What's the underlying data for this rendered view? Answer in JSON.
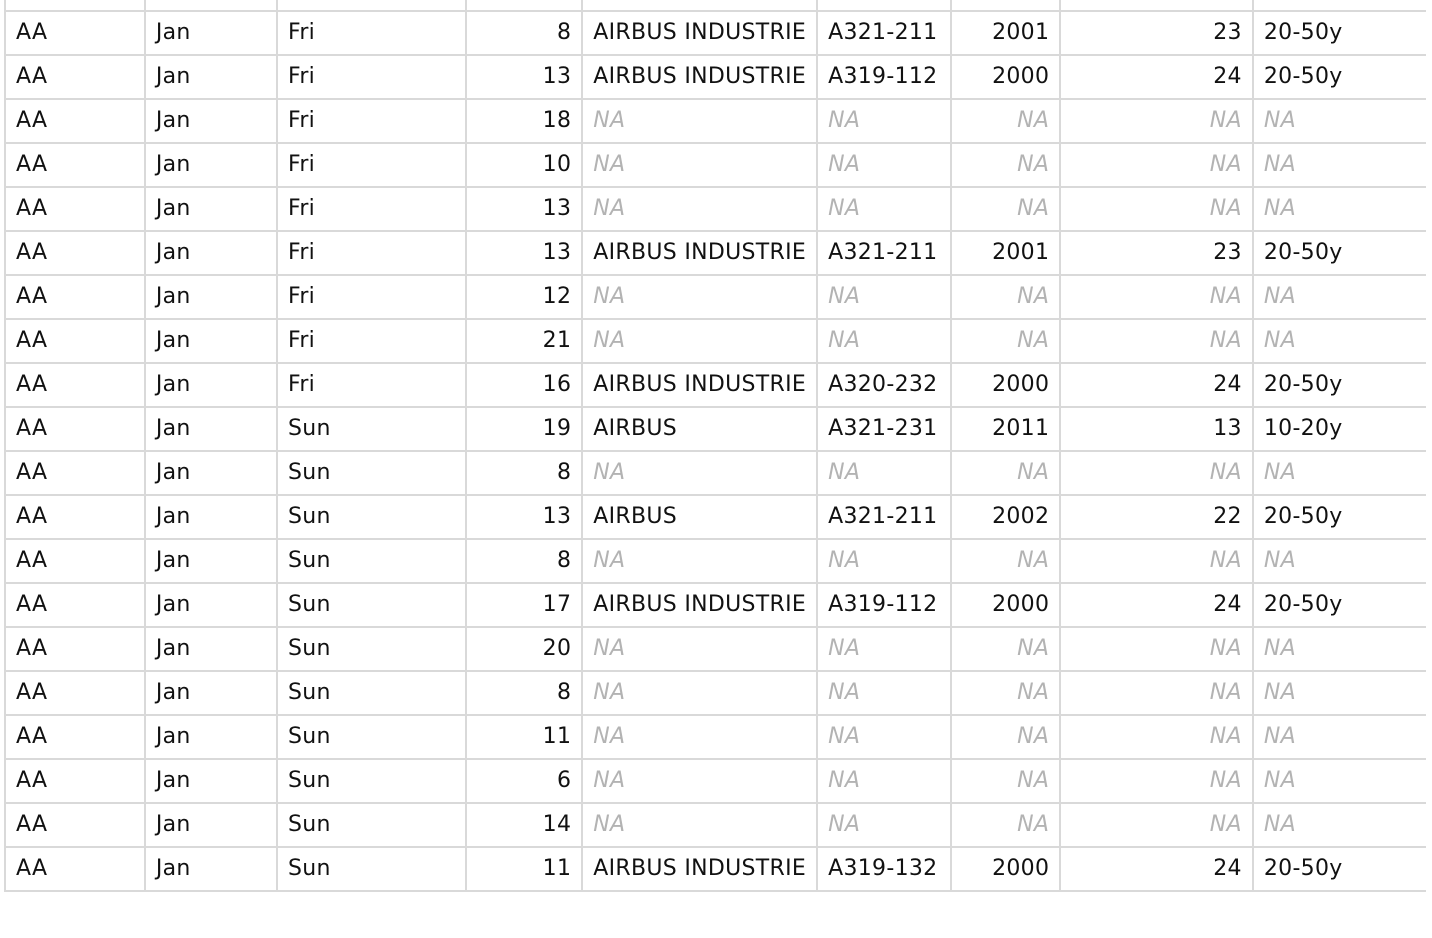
{
  "na_text": "NA",
  "rows": [
    [
      "AA",
      "Jan",
      "Fri",
      "8",
      "AIRBUS INDUSTRIE",
      "A321-211",
      "2001",
      "23",
      "20-50y"
    ],
    [
      "AA",
      "Jan",
      "Fri",
      "13",
      "AIRBUS INDUSTRIE",
      "A319-112",
      "2000",
      "24",
      "20-50y"
    ],
    [
      "AA",
      "Jan",
      "Fri",
      "18",
      "NA",
      "NA",
      "NA",
      "NA",
      "NA"
    ],
    [
      "AA",
      "Jan",
      "Fri",
      "10",
      "NA",
      "NA",
      "NA",
      "NA",
      "NA"
    ],
    [
      "AA",
      "Jan",
      "Fri",
      "13",
      "NA",
      "NA",
      "NA",
      "NA",
      "NA"
    ],
    [
      "AA",
      "Jan",
      "Fri",
      "13",
      "AIRBUS INDUSTRIE",
      "A321-211",
      "2001",
      "23",
      "20-50y"
    ],
    [
      "AA",
      "Jan",
      "Fri",
      "12",
      "NA",
      "NA",
      "NA",
      "NA",
      "NA"
    ],
    [
      "AA",
      "Jan",
      "Fri",
      "21",
      "NA",
      "NA",
      "NA",
      "NA",
      "NA"
    ],
    [
      "AA",
      "Jan",
      "Fri",
      "16",
      "AIRBUS INDUSTRIE",
      "A320-232",
      "2000",
      "24",
      "20-50y"
    ],
    [
      "AA",
      "Jan",
      "Sun",
      "19",
      "AIRBUS",
      "A321-231",
      "2011",
      "13",
      "10-20y"
    ],
    [
      "AA",
      "Jan",
      "Sun",
      "8",
      "NA",
      "NA",
      "NA",
      "NA",
      "NA"
    ],
    [
      "AA",
      "Jan",
      "Sun",
      "13",
      "AIRBUS",
      "A321-211",
      "2002",
      "22",
      "20-50y"
    ],
    [
      "AA",
      "Jan",
      "Sun",
      "8",
      "NA",
      "NA",
      "NA",
      "NA",
      "NA"
    ],
    [
      "AA",
      "Jan",
      "Sun",
      "17",
      "AIRBUS INDUSTRIE",
      "A319-112",
      "2000",
      "24",
      "20-50y"
    ],
    [
      "AA",
      "Jan",
      "Sun",
      "20",
      "NA",
      "NA",
      "NA",
      "NA",
      "NA"
    ],
    [
      "AA",
      "Jan",
      "Sun",
      "8",
      "NA",
      "NA",
      "NA",
      "NA",
      "NA"
    ],
    [
      "AA",
      "Jan",
      "Sun",
      "11",
      "NA",
      "NA",
      "NA",
      "NA",
      "NA"
    ],
    [
      "AA",
      "Jan",
      "Sun",
      "6",
      "NA",
      "NA",
      "NA",
      "NA",
      "NA"
    ],
    [
      "AA",
      "Jan",
      "Sun",
      "14",
      "NA",
      "NA",
      "NA",
      "NA",
      "NA"
    ],
    [
      "AA",
      "Jan",
      "Sun",
      "11",
      "AIRBUS INDUSTRIE",
      "A319-132",
      "2000",
      "24",
      "20-50y"
    ]
  ]
}
